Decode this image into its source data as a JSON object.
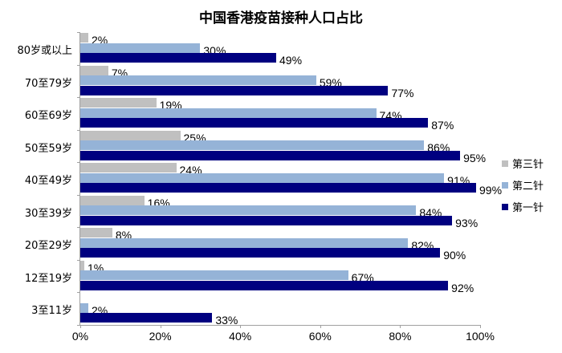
{
  "title": "中国香港疫苗接种人口占比",
  "colors": {
    "dose3": "#c0c0c0",
    "dose2": "#95b3d7",
    "dose1": "#000080"
  },
  "legend": [
    {
      "label": "第三针",
      "color": "#c0c0c0"
    },
    {
      "label": "第二针",
      "color": "#95b3d7"
    },
    {
      "label": "第一针",
      "color": "#000080"
    }
  ],
  "x_ticks": [
    "0%",
    "20%",
    "40%",
    "60%",
    "80%",
    "100%"
  ],
  "chart_data": {
    "type": "bar",
    "orientation": "horizontal",
    "title": "中国香港疫苗接种人口占比",
    "xlabel": "",
    "ylabel": "",
    "xlim": [
      0,
      100
    ],
    "x_tick_labels": [
      "0%",
      "20%",
      "40%",
      "60%",
      "80%",
      "100%"
    ],
    "grid": false,
    "legend_position": "right",
    "categories": [
      "80岁或以上",
      "70至79岁",
      "60至69岁",
      "50至59岁",
      "40至49岁",
      "30至39岁",
      "20至29岁",
      "12至19岁",
      "3至11岁"
    ],
    "series": [
      {
        "name": "第三针",
        "color": "#c0c0c0",
        "values": [
          2,
          7,
          19,
          25,
          24,
          16,
          8,
          1,
          null
        ]
      },
      {
        "name": "第二针",
        "color": "#95b3d7",
        "values": [
          30,
          59,
          74,
          86,
          91,
          84,
          82,
          67,
          2
        ]
      },
      {
        "name": "第一针",
        "color": "#000080",
        "values": [
          49,
          77,
          87,
          95,
          99,
          93,
          90,
          92,
          33
        ]
      }
    ]
  }
}
